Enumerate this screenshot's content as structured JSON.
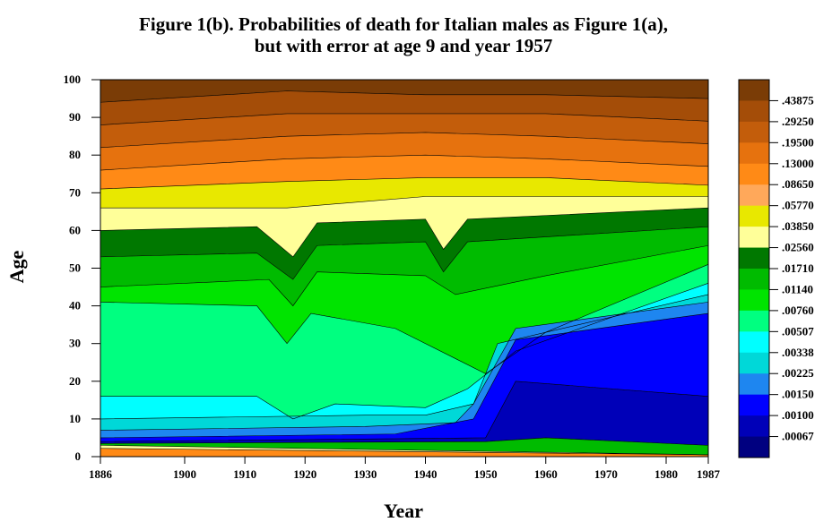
{
  "chart_data": {
    "type": "heatmap",
    "title_line1": "Figure 1(b). Probabilities of death for Italian males as Figure 1(a),",
    "title_line2": "but with error at age 9 and year 1957",
    "xlabel": "Year",
    "ylabel": "Age",
    "xlim": [
      1886,
      1987
    ],
    "ylim": [
      0,
      100
    ],
    "x_ticks": [
      "1886",
      "1900",
      "1910",
      "1920",
      "1930",
      "1940",
      "1950",
      "1960",
      "1970",
      "1980",
      "1987"
    ],
    "y_ticks": [
      "0",
      "10",
      "20",
      "30",
      "40",
      "50",
      "60",
      "70",
      "80",
      "90",
      "100"
    ],
    "legend": {
      "placement": "right",
      "colors": [
        "#7a3c06",
        "#a44d08",
        "#c35d0b",
        "#e6720e",
        "#ff8a16",
        "#ffa85a",
        "#e8e800",
        "#ffff99",
        "#007800",
        "#00bb00",
        "#00e400",
        "#00ff80",
        "#00ffff",
        "#00d8d8",
        "#1e86f0",
        "#0000ff",
        "#0000b8",
        "#000080"
      ],
      "labels": [
        ".43875",
        ".29250",
        ".19500",
        ".13000",
        ".08650",
        ".05770",
        ".03850",
        ".02560",
        ".01710",
        ".01140",
        ".00760",
        ".00507",
        ".00338",
        ".00225",
        ".00150",
        ".00100",
        ".00067"
      ]
    },
    "colors": {
      "c1": "#7a3c06",
      "c2": "#a44d08",
      "c3": "#c35d0b",
      "c4": "#e6720e",
      "c5": "#ff8a16",
      "c6": "#ffa85a",
      "c7": "#e8e800",
      "c8": "#ffff99",
      "c9": "#007800",
      "c10": "#00bb00",
      "c11": "#00e400",
      "c12": "#00ff80",
      "c13": "#00ffff",
      "c14": "#00d8d8",
      "c15": "#1e86f0",
      "c16": "#0000ff",
      "c17": "#0000b8",
      "c18": "#000080"
    },
    "bands": [
      {
        "color": "c1",
        "from": [
          [
            1886,
            94
          ],
          [
            1917,
            97
          ],
          [
            1940,
            96
          ],
          [
            1960,
            96
          ],
          [
            1987,
            95
          ]
        ],
        "to": [
          [
            1886,
            100
          ],
          [
            1987,
            100
          ]
        ]
      },
      {
        "color": "c2",
        "from": [
          [
            1886,
            88
          ],
          [
            1917,
            91
          ],
          [
            1940,
            91
          ],
          [
            1960,
            91
          ],
          [
            1987,
            89
          ]
        ],
        "to": "prev"
      },
      {
        "color": "c3",
        "from": [
          [
            1886,
            82
          ],
          [
            1917,
            85
          ],
          [
            1940,
            86
          ],
          [
            1960,
            85
          ],
          [
            1987,
            83
          ]
        ],
        "to": "prev"
      },
      {
        "color": "c4",
        "from": [
          [
            1886,
            76
          ],
          [
            1917,
            79
          ],
          [
            1940,
            80
          ],
          [
            1960,
            79
          ],
          [
            1987,
            77
          ]
        ],
        "to": "prev"
      },
      {
        "color": "c5",
        "from": [
          [
            1886,
            71
          ],
          [
            1917,
            73
          ],
          [
            1940,
            74
          ],
          [
            1960,
            74
          ],
          [
            1987,
            72
          ]
        ],
        "to": "prev"
      },
      {
        "color": "c7",
        "from": [
          [
            1886,
            66
          ],
          [
            1917,
            66
          ],
          [
            1940,
            69
          ],
          [
            1960,
            69
          ],
          [
            1987,
            69
          ]
        ],
        "to": "prev"
      },
      {
        "color": "c8",
        "from": [
          [
            1886,
            60
          ],
          [
            1912,
            61
          ],
          [
            1918,
            53
          ],
          [
            1922,
            62
          ],
          [
            1940,
            63
          ],
          [
            1943,
            55
          ],
          [
            1947,
            63
          ],
          [
            1987,
            66
          ]
        ],
        "to": "prev"
      },
      {
        "color": "c9",
        "from": [
          [
            1886,
            53
          ],
          [
            1912,
            54
          ],
          [
            1918,
            47
          ],
          [
            1922,
            56
          ],
          [
            1940,
            57
          ],
          [
            1943,
            49
          ],
          [
            1947,
            57
          ],
          [
            1987,
            61
          ]
        ],
        "to": "prev"
      },
      {
        "color": "c10",
        "from": [
          [
            1886,
            45
          ],
          [
            1914,
            47
          ],
          [
            1918,
            40
          ],
          [
            1922,
            49
          ],
          [
            1940,
            48
          ],
          [
            1945,
            43
          ],
          [
            1960,
            48
          ],
          [
            1987,
            56
          ]
        ],
        "to": "prev"
      },
      {
        "color": "c11",
        "from": [
          [
            1886,
            41
          ],
          [
            1912,
            40
          ],
          [
            1917,
            30
          ],
          [
            1921,
            38
          ],
          [
            1935,
            34
          ],
          [
            1950,
            22
          ],
          [
            1960,
            33
          ],
          [
            1987,
            51
          ]
        ],
        "to": "prev"
      },
      {
        "color": "c12",
        "from": [
          [
            1886,
            16
          ],
          [
            1912,
            16
          ],
          [
            1918,
            10
          ],
          [
            1925,
            14
          ],
          [
            1940,
            13
          ],
          [
            1947,
            18
          ],
          [
            1955,
            28
          ],
          [
            1987,
            46
          ]
        ],
        "to": "prev"
      },
      {
        "color": "c13",
        "from": [
          [
            1886,
            10
          ],
          [
            1930,
            11
          ],
          [
            1940,
            11
          ],
          [
            1948,
            14
          ],
          [
            1952,
            30
          ],
          [
            1987,
            43
          ]
        ],
        "to": "prev"
      },
      {
        "color": "c14",
        "from": [
          [
            1886,
            7
          ],
          [
            1930,
            8
          ],
          [
            1945,
            9
          ],
          [
            1948,
            14
          ],
          [
            1955,
            34
          ],
          [
            1987,
            41
          ]
        ],
        "to": "prev"
      },
      {
        "color": "c15",
        "from": [
          [
            1886,
            5
          ],
          [
            1935,
            6
          ],
          [
            1948,
            10
          ],
          [
            1955,
            31
          ],
          [
            1987,
            38
          ]
        ],
        "to": "prev"
      },
      {
        "color": "c16",
        "from": [
          [
            1886,
            4
          ],
          [
            1950,
            5
          ],
          [
            1955,
            20
          ],
          [
            1987,
            16
          ]
        ],
        "to": "prev"
      },
      {
        "color": "c17",
        "from": [
          [
            1886,
            3.5
          ],
          [
            1950,
            4
          ],
          [
            1960,
            5
          ],
          [
            1987,
            3
          ]
        ],
        "to": "prev"
      },
      {
        "color": "c10",
        "from": [
          [
            1886,
            3
          ],
          [
            1987,
            0.5
          ]
        ],
        "to": "prev"
      },
      {
        "color": "c8",
        "from": [
          [
            1886,
            2.2
          ],
          [
            1987,
            0.5
          ]
        ],
        "to": "prev"
      },
      {
        "color": "c5",
        "from": [
          [
            1886,
            0
          ],
          [
            1987,
            0
          ]
        ],
        "to": "prev"
      }
    ]
  }
}
